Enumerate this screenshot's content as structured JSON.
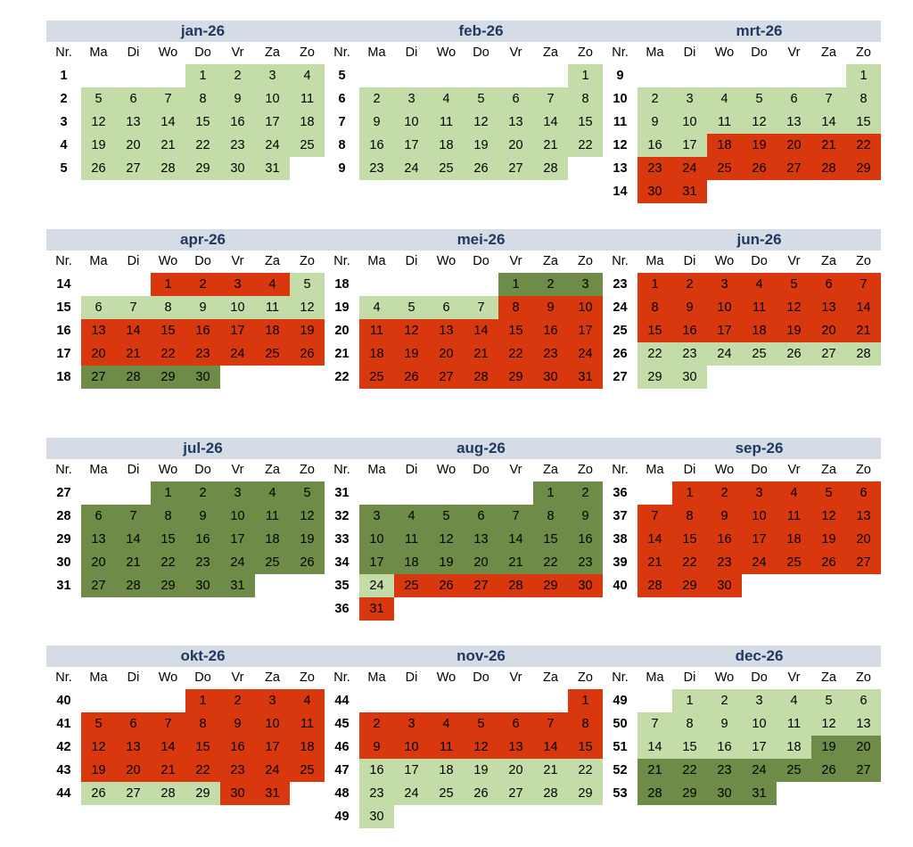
{
  "legend_colors": {
    "L": "#c4dca7",
    "D": "#6e8b47",
    "R": "#d9380f"
  },
  "weekday_headers": [
    "Nr.",
    "Ma",
    "Di",
    "Wo",
    "Do",
    "Vr",
    "Za",
    "Zo"
  ],
  "months": [
    {
      "title": "jan-26",
      "startDow": 3,
      "days": 31,
      "firstWeek": 1,
      "weekNumbers": [
        "1",
        "2",
        "3",
        "4",
        "5"
      ],
      "colors": "LLLLLLLLLLLLLLLLLLLLLLLLLLLLLLL"
    },
    {
      "title": "feb-26",
      "startDow": 6,
      "days": 28,
      "firstWeek": 5,
      "weekNumbers": [
        "5",
        "6",
        "7",
        "8",
        "9"
      ],
      "colors": "LLLLLLLLLLLLLLLLLLLLLLLLLLLL"
    },
    {
      "title": "mrt-26",
      "startDow": 6,
      "days": 31,
      "firstWeek": 9,
      "weekNumbers": [
        "9",
        "10",
        "11",
        "12",
        "13",
        "14"
      ],
      "colors": "LLLLLLLLLLLLLLLLLRRRRRRRRRRRRRR"
    },
    {
      "title": "apr-26",
      "startDow": 2,
      "days": 30,
      "firstWeek": 14,
      "weekNumbers": [
        "14",
        "15",
        "16",
        "17",
        "18"
      ],
      "colors": "RRRRLLLLLLLLRRRRRRRRRRRRRRDDDD"
    },
    {
      "title": "mei-26",
      "startDow": 4,
      "days": 31,
      "firstWeek": 18,
      "weekNumbers": [
        "18",
        "19",
        "20",
        "21",
        "22"
      ],
      "colors": "DDDLLLLRRRRRRRRRRRRRRRRRRRRRRRR"
    },
    {
      "title": "jun-26",
      "startDow": 0,
      "days": 30,
      "firstWeek": 23,
      "weekNumbers": [
        "23",
        "24",
        "25",
        "26",
        "27"
      ],
      "colors": "RRRRRRRRRRRRRRRRRRRRRLLLLLLLLL"
    },
    {
      "title": "jul-26",
      "startDow": 2,
      "days": 31,
      "firstWeek": 27,
      "weekNumbers": [
        "27",
        "28",
        "29",
        "30",
        "31"
      ],
      "colors": "DDDDDDDDDDDDDDDDDDDDDDDDDDDDDDD"
    },
    {
      "title": "aug-26",
      "startDow": 5,
      "days": 31,
      "firstWeek": 31,
      "weekNumbers": [
        "31",
        "32",
        "33",
        "34",
        "35",
        "36"
      ],
      "colors": "DDDDDDDDDDDDDDDDDDDDDDDLRRRRRRR"
    },
    {
      "title": "sep-26",
      "startDow": 1,
      "days": 30,
      "firstWeek": 36,
      "weekNumbers": [
        "36",
        "37",
        "38",
        "39",
        "40"
      ],
      "colors": "RRRRRRRRRRRRRRRRRRRRRRRRRRRRRR"
    },
    {
      "title": "okt-26",
      "startDow": 3,
      "days": 31,
      "firstWeek": 40,
      "weekNumbers": [
        "40",
        "41",
        "42",
        "43",
        "44"
      ],
      "colors": "RRRRRRRRRRRRRRRRRRRRRRRRRLLLLRR"
    },
    {
      "title": "nov-26",
      "startDow": 6,
      "days": 30,
      "firstWeek": 44,
      "weekNumbers": [
        "44",
        "45",
        "46",
        "47",
        "48",
        "49"
      ],
      "colors": "RRRRRRRRRRRRRRRLLLLLLLLLLLLLLL"
    },
    {
      "title": "dec-26",
      "startDow": 1,
      "days": 31,
      "firstWeek": 49,
      "weekNumbers": [
        "49",
        "50",
        "51",
        "52",
        "53"
      ],
      "colors": "LLLLLLLLLLLLLLLLLLDDDDDDDDDDDDD"
    }
  ]
}
